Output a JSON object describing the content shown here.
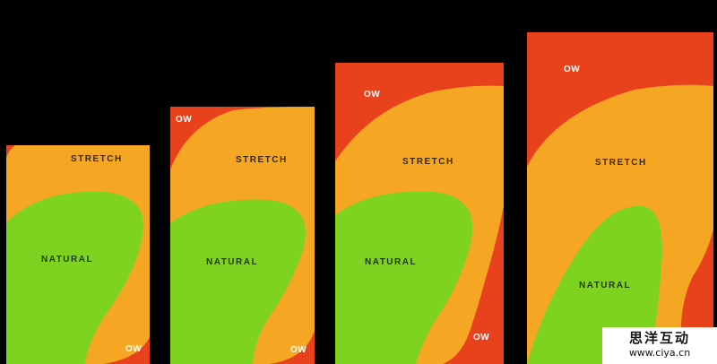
{
  "zones": {
    "colors": {
      "natural": "#7ed321",
      "stretch": "#f5a623",
      "ow": "#e8421c"
    }
  },
  "phones": [
    {
      "id": "phone-1",
      "stretch_label": "STRETCH",
      "natural_label": "NATURAL",
      "ow_labels": [
        "OW"
      ]
    },
    {
      "id": "phone-2",
      "stretch_label": "STRETCH",
      "natural_label": "NATURAL",
      "ow_labels": [
        "OW",
        "OW"
      ]
    },
    {
      "id": "phone-3",
      "stretch_label": "STRETCH",
      "natural_label": "NATURAL",
      "ow_labels": [
        "OW",
        "OW"
      ]
    },
    {
      "id": "phone-4",
      "stretch_label": "STRETCH",
      "natural_label": "NATURAL",
      "ow_labels": [
        "OW"
      ]
    }
  ],
  "watermark": {
    "title": "思洋互动",
    "url": "www.ciya.cn"
  }
}
